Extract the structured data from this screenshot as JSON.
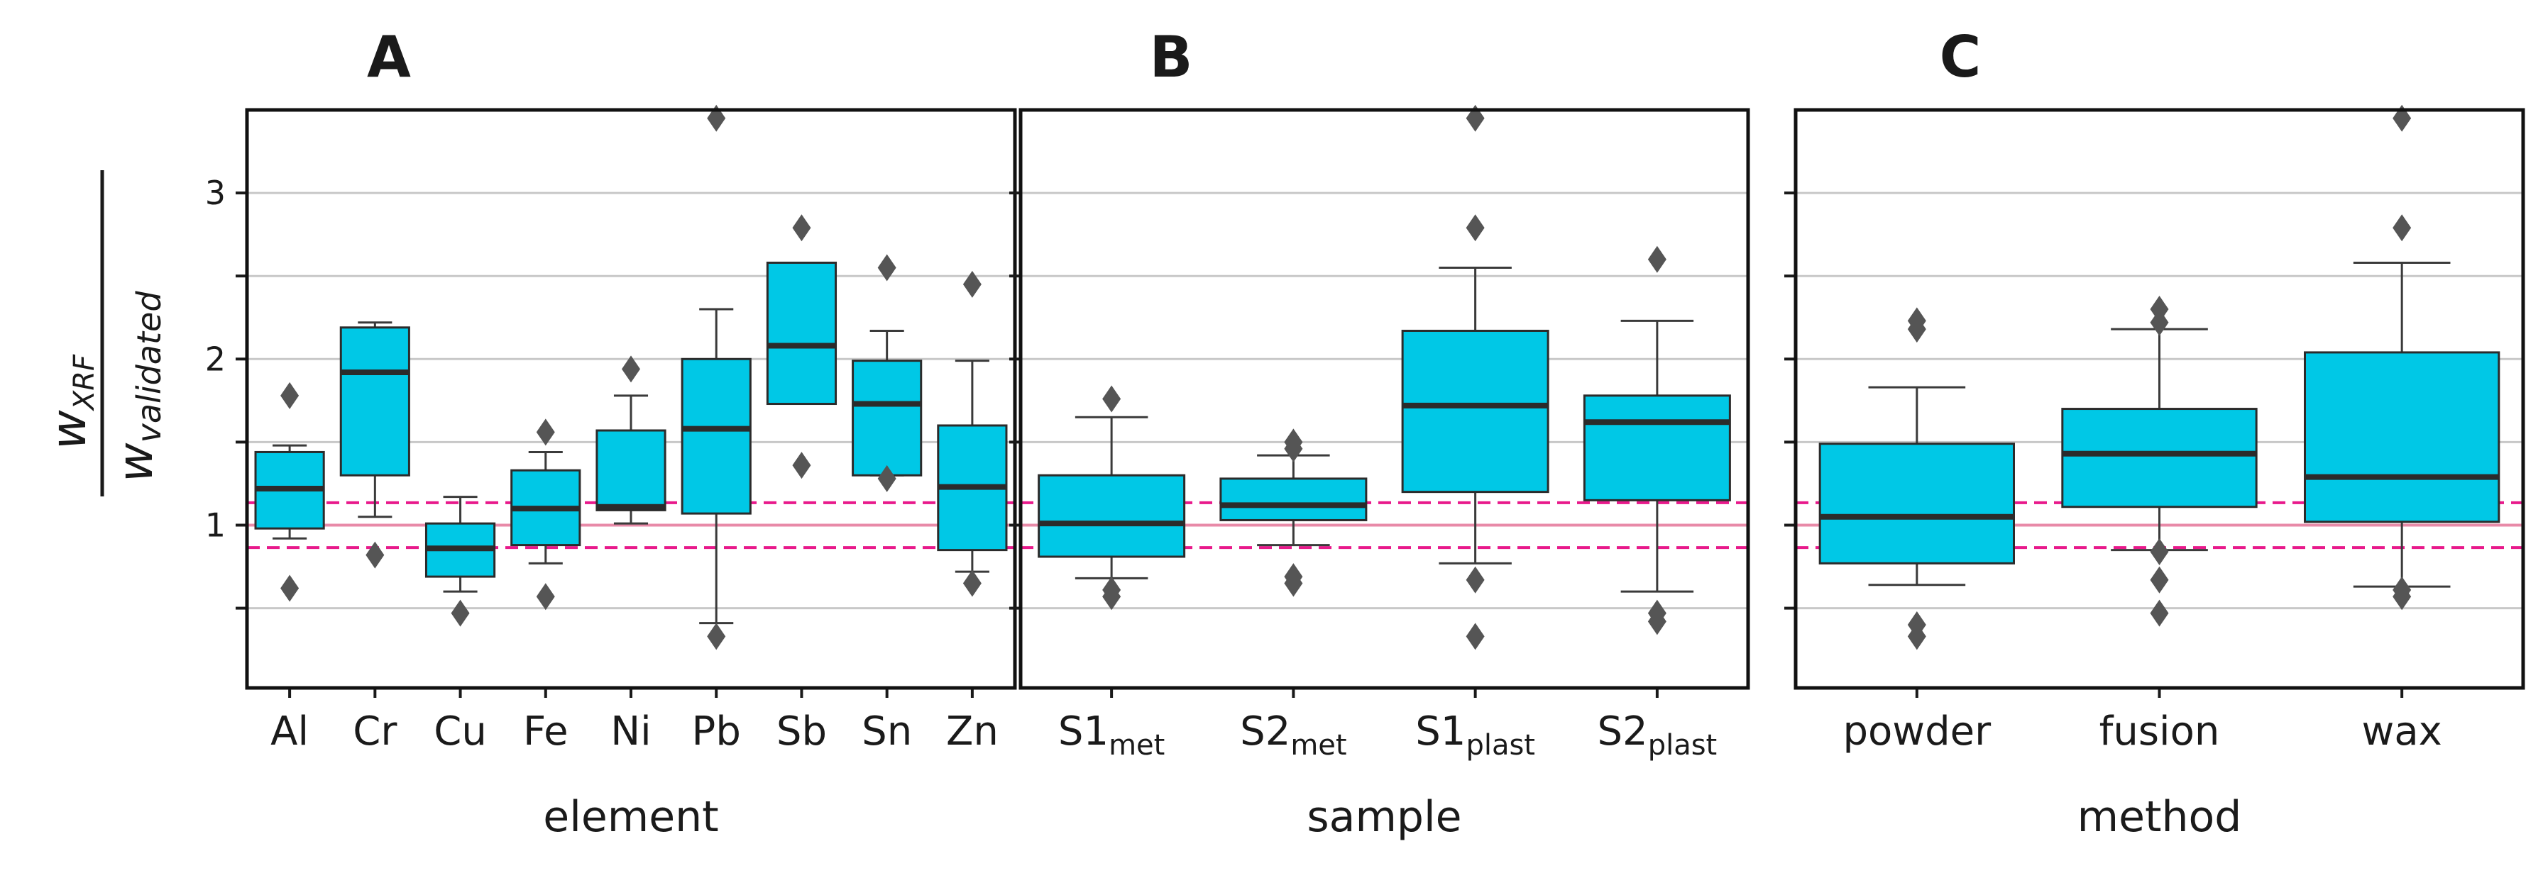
{
  "ylabel": {
    "numerator_main": "w",
    "numerator_sub": "XRF",
    "denominator_main": "w",
    "denominator_sub": "validated"
  },
  "reference_lines": {
    "solid": 1.0,
    "dashed_low": 0.865,
    "dashed_high": 1.135,
    "color_solid": "#e88aa8",
    "color_dashed": "#e8198b"
  },
  "colors": {
    "box_fill": "#00c8e6",
    "box_edge": "#2b2b2b",
    "median": "#2b2b2b",
    "whisker": "#3a3a3a",
    "flier": "#555555",
    "grid": "#c8c8c8"
  },
  "chart_data": [
    {
      "type": "box",
      "panel": "A",
      "xlabel": "element",
      "ylim": [
        0.02,
        3.5
      ],
      "yticks": [
        1,
        2,
        3
      ],
      "ytick_labels": [
        "1",
        "2",
        "3"
      ],
      "ytick_minor": [
        0.5,
        1.5,
        2.5
      ],
      "gridlines": [
        0.5,
        1,
        1.5,
        2,
        2.5,
        3
      ],
      "categories": [
        {
          "label": "Al",
          "sub": "",
          "q1": 0.98,
          "median": 1.22,
          "q3": 1.44,
          "whislo": 0.92,
          "whishi": 1.48,
          "fliers": [
            0.62,
            1.78
          ]
        },
        {
          "label": "Cr",
          "sub": "",
          "q1": 1.3,
          "median": 1.92,
          "q3": 2.19,
          "whislo": 1.05,
          "whishi": 2.22,
          "fliers": [
            0.82
          ]
        },
        {
          "label": "Cu",
          "sub": "",
          "q1": 0.69,
          "median": 0.86,
          "q3": 1.01,
          "whislo": 0.6,
          "whishi": 1.17,
          "fliers": [
            0.47
          ]
        },
        {
          "label": "Fe",
          "sub": "",
          "q1": 0.88,
          "median": 1.1,
          "q3": 1.33,
          "whislo": 0.77,
          "whishi": 1.44,
          "fliers": [
            0.57,
            1.56
          ]
        },
        {
          "label": "Ni",
          "sub": "",
          "q1": 1.09,
          "median": 1.11,
          "q3": 1.57,
          "whislo": 1.01,
          "whishi": 1.78,
          "fliers": [
            1.94
          ]
        },
        {
          "label": "Pb",
          "sub": "",
          "q1": 1.07,
          "median": 1.58,
          "q3": 2.0,
          "whislo": 0.41,
          "whishi": 2.3,
          "fliers": [
            0.33,
            3.45
          ]
        },
        {
          "label": "Sb",
          "sub": "",
          "q1": 1.73,
          "median": 2.08,
          "q3": 2.58,
          "whislo": 1.73,
          "whishi": 2.58,
          "fliers": [
            1.36,
            2.79
          ]
        },
        {
          "label": "Sn",
          "sub": "",
          "q1": 1.3,
          "median": 1.73,
          "q3": 1.99,
          "whislo": 1.3,
          "whishi": 2.17,
          "fliers": [
            1.28,
            2.55
          ]
        },
        {
          "label": "Zn",
          "sub": "",
          "q1": 0.85,
          "median": 1.23,
          "q3": 1.6,
          "whislo": 0.72,
          "whishi": 1.99,
          "fliers": [
            0.65,
            2.45
          ]
        }
      ]
    },
    {
      "type": "box",
      "panel": "B",
      "xlabel": "sample",
      "ylim": [
        0.02,
        3.5
      ],
      "yticks": [
        1,
        2,
        3
      ],
      "ytick_labels": [
        "",
        "",
        ""
      ],
      "ytick_minor": [
        0.5,
        1.5,
        2.5
      ],
      "gridlines": [
        0.5,
        1,
        1.5,
        2,
        2.5,
        3
      ],
      "categories": [
        {
          "label": "S1",
          "sub": "met",
          "q1": 0.81,
          "median": 1.01,
          "q3": 1.3,
          "whislo": 0.68,
          "whishi": 1.65,
          "fliers": [
            0.57,
            0.61,
            1.76
          ]
        },
        {
          "label": "S2",
          "sub": "met",
          "q1": 1.03,
          "median": 1.12,
          "q3": 1.28,
          "whislo": 0.88,
          "whishi": 1.42,
          "fliers": [
            0.65,
            0.69,
            1.46,
            1.5
          ]
        },
        {
          "label": "S1",
          "sub": "plast",
          "q1": 1.2,
          "median": 1.72,
          "q3": 2.17,
          "whislo": 0.77,
          "whishi": 2.55,
          "fliers": [
            0.33,
            0.67,
            2.79,
            3.45
          ]
        },
        {
          "label": "S2",
          "sub": "plast",
          "q1": 1.15,
          "median": 1.62,
          "q3": 1.78,
          "whislo": 0.6,
          "whishi": 2.23,
          "fliers": [
            0.42,
            0.47,
            2.6
          ]
        }
      ]
    },
    {
      "type": "box",
      "panel": "C",
      "xlabel": "method",
      "ylim": [
        0.02,
        3.5
      ],
      "yticks": [
        1,
        2,
        3
      ],
      "ytick_labels": [
        "",
        "",
        ""
      ],
      "ytick_minor": [
        0.5,
        1.5,
        2.5
      ],
      "gridlines": [
        0.5,
        1,
        1.5,
        2,
        2.5,
        3
      ],
      "categories": [
        {
          "label": "powder",
          "sub": "",
          "q1": 0.77,
          "median": 1.05,
          "q3": 1.49,
          "whislo": 0.64,
          "whishi": 1.83,
          "fliers": [
            0.33,
            0.4,
            2.18,
            2.23
          ]
        },
        {
          "label": "fusion",
          "sub": "",
          "q1": 1.11,
          "median": 1.43,
          "q3": 1.7,
          "whislo": 0.85,
          "whishi": 2.18,
          "fliers": [
            0.47,
            0.67,
            0.84,
            2.22,
            2.3
          ]
        },
        {
          "label": "wax",
          "sub": "",
          "q1": 1.02,
          "median": 1.29,
          "q3": 2.04,
          "whislo": 0.63,
          "whishi": 2.58,
          "fliers": [
            0.57,
            0.61,
            2.79,
            3.45
          ]
        }
      ]
    }
  ]
}
